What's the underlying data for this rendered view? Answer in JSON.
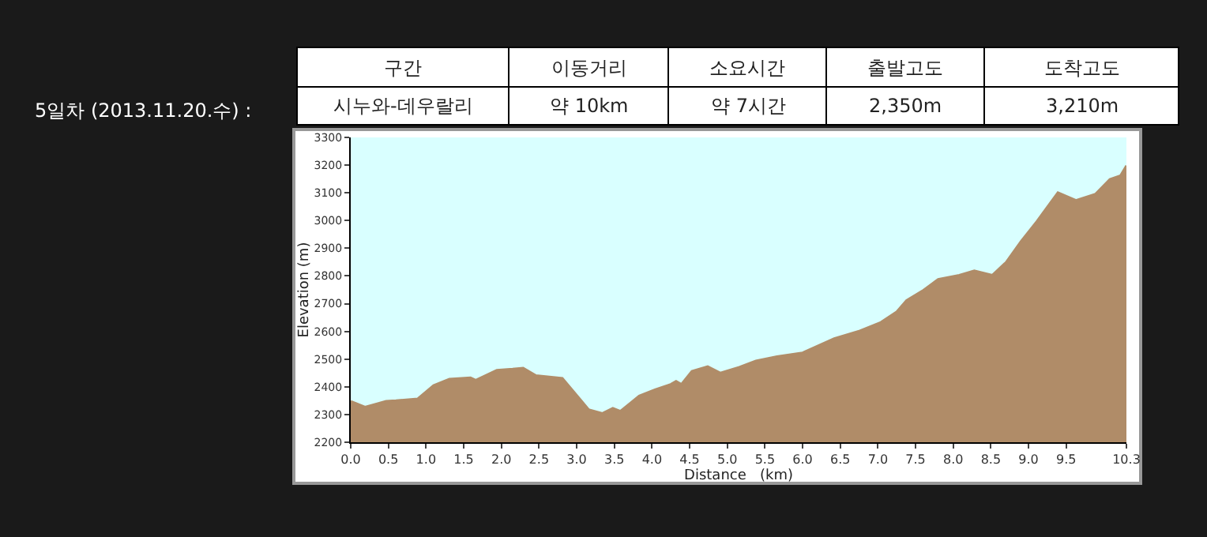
{
  "chart_data": {
    "type": "area",
    "annotations": [
      "5일차 (2013.11.20.수) :",
      "구간",
      "이동거리",
      "소요시간",
      "출발고도",
      "도착고도",
      "시누와-데우랄리",
      "약 10km",
      "약 7시간",
      "2,350m",
      "3,210m"
    ],
    "xlabel": "Distance   (km)",
    "ylabel": "Elevation (m)",
    "series": [
      {
        "color": "#b08c68",
        "x": [
          0.0,
          0.19,
          0.47,
          0.6,
          0.89,
          1.1,
          1.31,
          1.59,
          1.66,
          1.94,
          2.15,
          2.29,
          2.46,
          2.81,
          3.16,
          3.34,
          3.48,
          3.58,
          3.83,
          4.04,
          4.25,
          4.32,
          4.39,
          4.53,
          4.74,
          4.91,
          5.16,
          5.38,
          5.66,
          6.0,
          6.42,
          6.76,
          7.04,
          7.25,
          7.38,
          7.59,
          7.8,
          8.08,
          8.28,
          8.52,
          8.7,
          8.9,
          9.11,
          9.39,
          9.63,
          9.89,
          10.08,
          10.22,
          10.3
        ],
        "values": [
          2348,
          2327,
          2348,
          2350,
          2357,
          2405,
          2428,
          2433,
          2424,
          2460,
          2464,
          2468,
          2441,
          2431,
          2318,
          2304,
          2323,
          2312,
          2367,
          2390,
          2409,
          2420,
          2409,
          2456,
          2473,
          2450,
          2471,
          2494,
          2509,
          2523,
          2574,
          2602,
          2633,
          2671,
          2712,
          2746,
          2788,
          2803,
          2819,
          2803,
          2849,
          2925,
          2997,
          3101,
          3073,
          3096,
          3149,
          3162,
          3198
        ]
      }
    ],
    "xlim": [
      0,
      10.3
    ],
    "xticks": [
      {
        "value": 0,
        "label": "0.0"
      },
      0.5,
      {
        "value": 1,
        "label": "1.0"
      },
      1.5,
      {
        "value": 2,
        "label": "2.0"
      },
      2.5,
      {
        "value": 3,
        "label": "3.0"
      },
      3.5,
      {
        "value": 4,
        "label": "4.0"
      },
      4.5,
      {
        "value": 5,
        "label": "5.0"
      },
      5.5,
      {
        "value": 6,
        "label": "6.0"
      },
      6.5,
      {
        "value": 7,
        "label": "7.0"
      },
      7.5,
      {
        "value": 8,
        "label": "8.0"
      },
      8.5,
      {
        "value": 9,
        "label": "9.0"
      },
      9.5,
      10.3
    ],
    "ylim": [
      2200,
      3300
    ],
    "yticks": [
      2200,
      2300,
      2400,
      2500,
      2600,
      2700,
      2800,
      2900,
      3000,
      3100,
      3200,
      3300
    ]
  }
}
